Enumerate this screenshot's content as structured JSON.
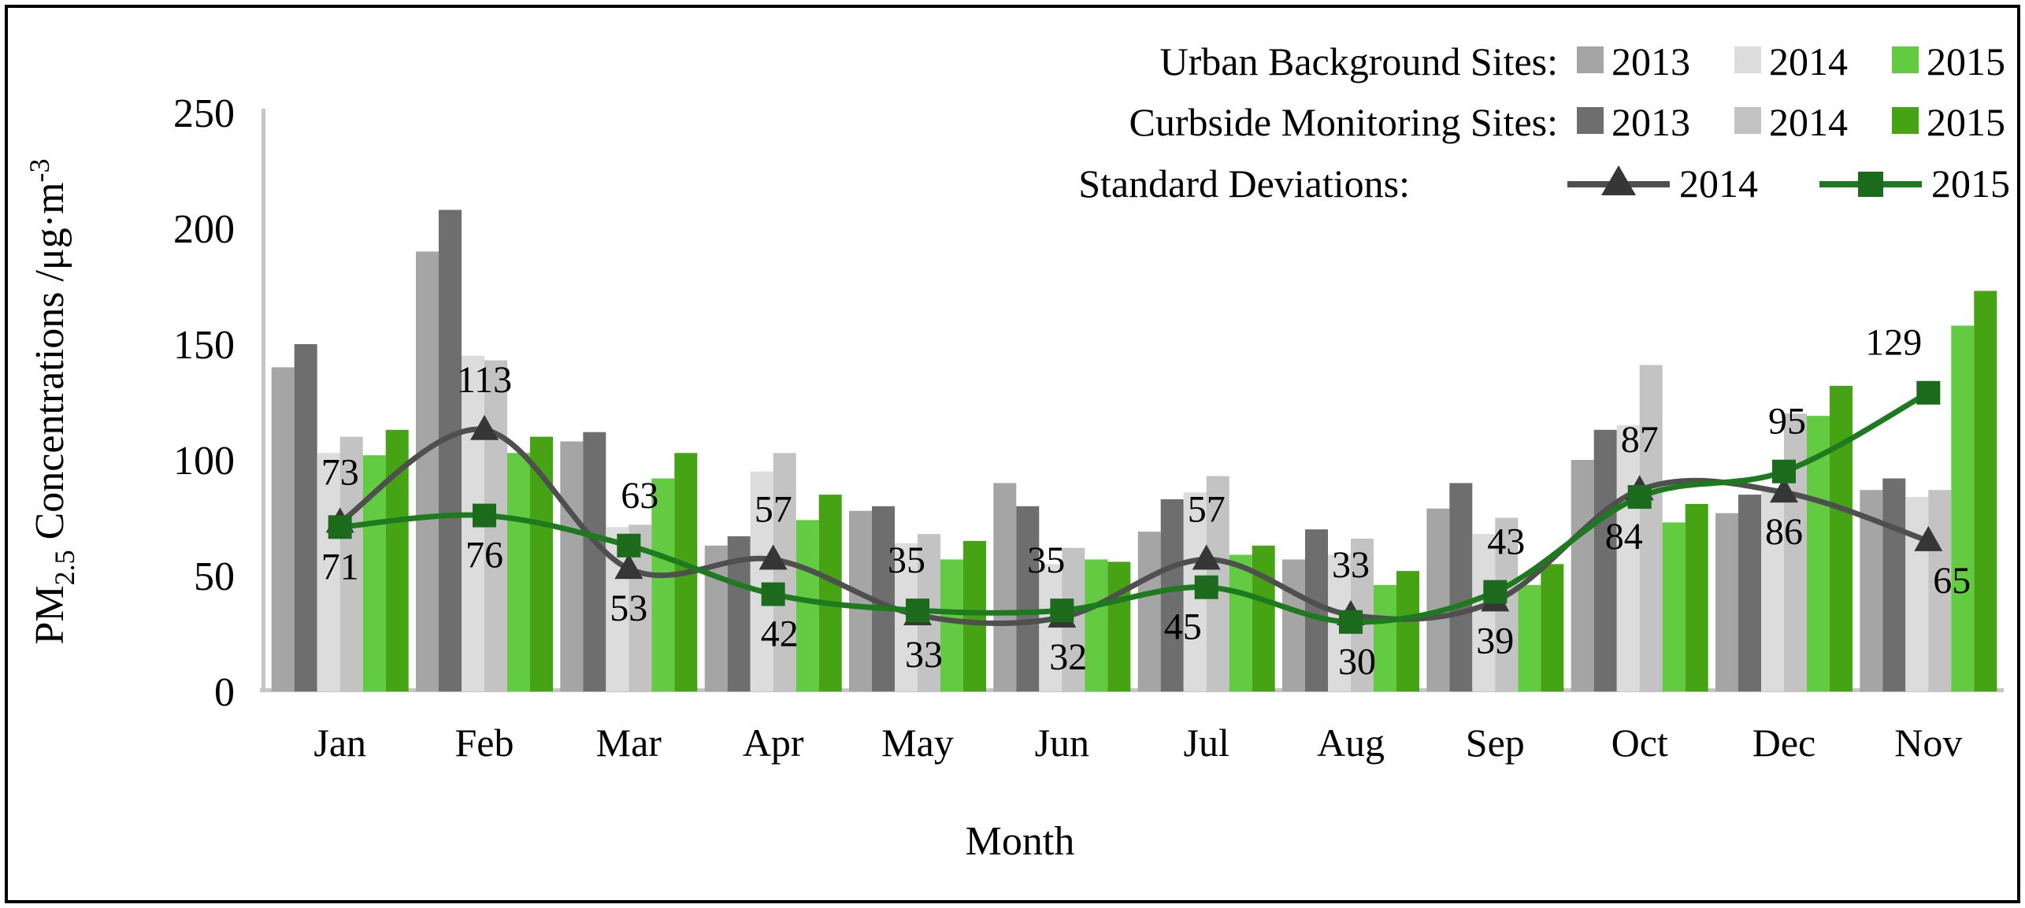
{
  "legend": {
    "urban_label": "Urban Background Sites:",
    "curbside_label": "Curbside Monitoring Sites:",
    "sd_label": "Standard Deviations:",
    "y2013": "2013",
    "y2014": "2014",
    "y2015": "2015"
  },
  "chart_data": {
    "type": "bar+line",
    "title": "",
    "xlabel": "Month",
    "ylabel": "PM2.5 Concentrations /μg·m-3",
    "ylabel_parts": {
      "p1": "PM",
      "p2": "2.5",
      "p3": " Concentrations /μg·m",
      "p4": "-3"
    },
    "ylim": [
      0,
      250
    ],
    "yticks": [
      0,
      50,
      100,
      150,
      200,
      250
    ],
    "grid": "off",
    "legend_position": "top-right",
    "categories": [
      "Jan",
      "Feb",
      "Mar",
      "Apr",
      "May",
      "Jun",
      "Jul",
      "Aug",
      "Sep",
      "Oct",
      "Dec",
      "Nov"
    ],
    "bar_series": [
      {
        "key": "urban-2013",
        "name": "Urban Background Sites 2013",
        "color": "#a5a5a5",
        "values": [
          140,
          190,
          108,
          63,
          78,
          90,
          69,
          57,
          79,
          100,
          77,
          87
        ]
      },
      {
        "key": "curbside-2013",
        "name": "Curbside Monitoring Sites 2013",
        "color": "#6e6e6e",
        "values": [
          150,
          208,
          112,
          67,
          80,
          80,
          83,
          70,
          90,
          113,
          85,
          92
        ]
      },
      {
        "key": "urban-2014",
        "name": "Urban Background Sites 2014",
        "color": "#dcdcdc",
        "values": [
          103,
          145,
          71,
          95,
          64,
          55,
          86,
          59,
          68,
          115,
          88,
          84
        ]
      },
      {
        "key": "curbside-2014",
        "name": "Curbside Monitoring Sites 2014",
        "color": "#c3c3c3",
        "values": [
          110,
          143,
          72,
          103,
          68,
          62,
          93,
          66,
          75,
          141,
          120,
          87
        ]
      },
      {
        "key": "urban-2015",
        "name": "Urban Background Sites 2015",
        "color": "#63cb41",
        "values": [
          102,
          103,
          92,
          74,
          57,
          57,
          59,
          46,
          46,
          73,
          119,
          158
        ]
      },
      {
        "key": "curbside-2015",
        "name": "Curbside Monitoring Sites 2015",
        "color": "#46a414",
        "values": [
          113,
          110,
          103,
          85,
          65,
          56,
          63,
          52,
          55,
          81,
          132,
          173
        ]
      }
    ],
    "line_series": [
      {
        "key": "sd-2014",
        "name": "Standard Deviations 2014",
        "color": "#4f4f4f",
        "marker": "triangle",
        "marker_color": "#363636",
        "values": [
          73,
          113,
          53,
          57,
          33,
          32,
          57,
          33,
          39,
          87,
          86,
          65
        ],
        "label_pos": [
          "above",
          "above",
          "below",
          "above",
          "below",
          "below",
          "above",
          "above",
          "below",
          "above",
          "below",
          "below"
        ],
        "label_dx": [
          0,
          0,
          0,
          0,
          8,
          8,
          0,
          0,
          0,
          0,
          0,
          30
        ],
        "label_colors": [
          "#000000",
          "#000000",
          "#000000",
          "#000000",
          "#000000",
          "#000000",
          "#000000",
          "#000000",
          "#000000",
          "#000000",
          "#000000",
          "#000000"
        ]
      },
      {
        "key": "sd-2015",
        "name": "Standard Deviations 2015",
        "color": "#1e7a1e",
        "marker": "square",
        "marker_color": "#1c6b1c",
        "values": [
          71,
          76,
          63,
          42,
          35,
          35,
          45,
          30,
          43,
          84,
          95,
          129
        ],
        "label_pos": [
          "below",
          "below",
          "above",
          "below",
          "above",
          "above",
          "below",
          "below",
          "above",
          "below",
          "above",
          "above"
        ],
        "label_dx": [
          0,
          0,
          14,
          8,
          -14,
          -20,
          -30,
          8,
          14,
          -20,
          4,
          -44
        ],
        "label_colors": [
          "#1e7a1e",
          "#000000",
          "#1e7a1e",
          "#1e7a1e",
          "#1e7a1e",
          "#1e7a1e",
          "#1e7a1e",
          "#1e7a1e",
          "#1e7a1e",
          "#1e7a1e",
          "#1e7a1e",
          "#1e7a1e"
        ]
      }
    ]
  }
}
